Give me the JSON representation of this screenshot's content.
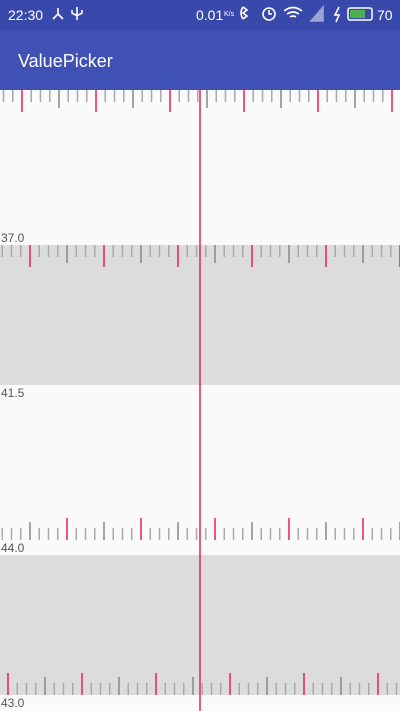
{
  "status_bar": {
    "time": "22:30",
    "speed": "0.01",
    "speed_unit": "K/s",
    "battery": "70"
  },
  "app_bar": {
    "title": "ValuePicker"
  },
  "pickers": [
    {
      "label": "37.0"
    },
    {
      "label": "41.5"
    },
    {
      "label": "44.0"
    },
    {
      "label": "43.0"
    }
  ]
}
